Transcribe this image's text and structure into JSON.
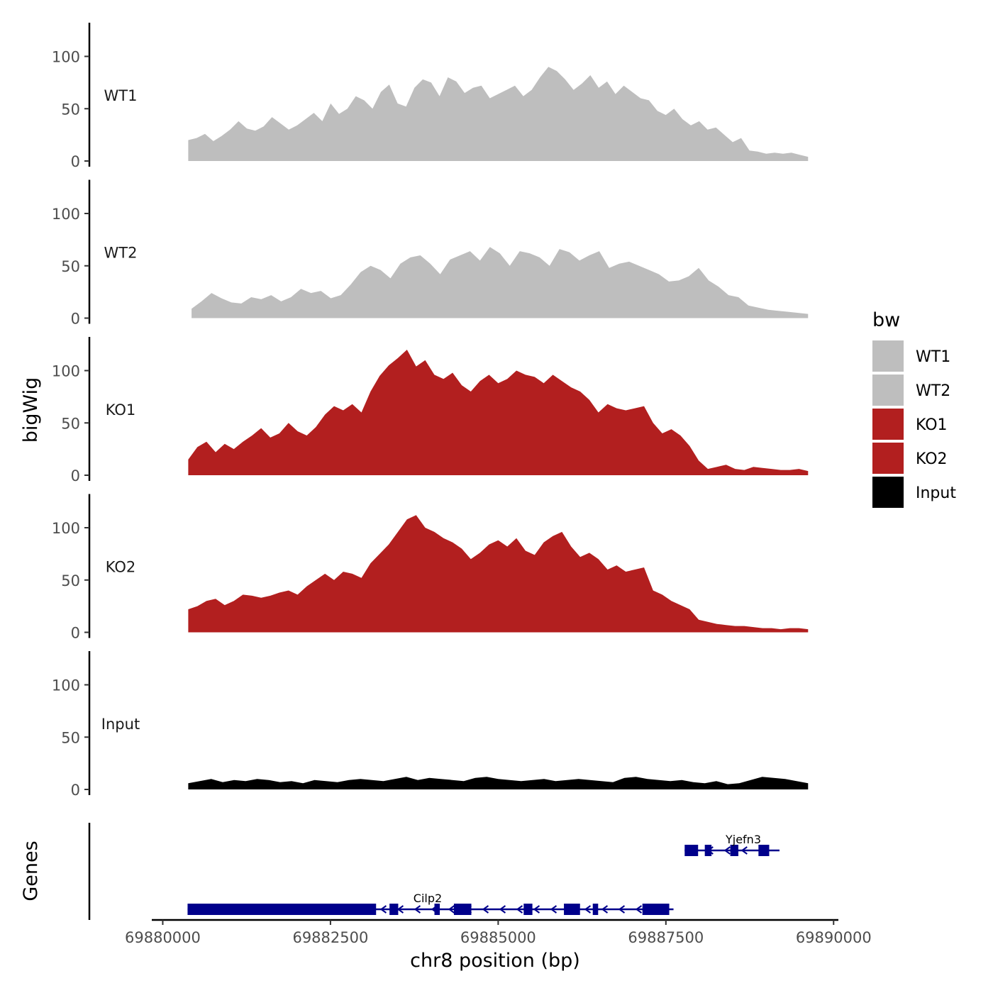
{
  "chart_data": {
    "type": "area",
    "title": "",
    "xlabel": "chr8 position (bp)",
    "ylabel": "bigWig",
    "genes_label": "Genes",
    "xlim": [
      69879900,
      69890050
    ],
    "xticks": [
      69880000,
      69882500,
      69885000,
      69887500,
      69890000
    ],
    "xtick_labels": [
      "69880000",
      "69882500",
      "69885000",
      "69887500",
      "69890000"
    ],
    "ylim": [
      0,
      130
    ],
    "yticks": [
      0,
      50,
      100
    ],
    "ytick_labels": [
      "0",
      "50",
      "100"
    ],
    "legend_title": "bw",
    "legend_position": "right",
    "series": [
      {
        "name": "WT1",
        "color": "#bebebe",
        "x_start": 69880380,
        "x_end": 69889620,
        "step": 220,
        "values": [
          20,
          22,
          26,
          19,
          24,
          30,
          38,
          31,
          29,
          33,
          42,
          36,
          30,
          34,
          40,
          46,
          38,
          55,
          45,
          50,
          62,
          58,
          50,
          66,
          73,
          55,
          52,
          70,
          78,
          75,
          62,
          80,
          76,
          65,
          70,
          72,
          60,
          64,
          68,
          72,
          62,
          68,
          80,
          90,
          86,
          78,
          68,
          74,
          82,
          70,
          76,
          64,
          72,
          66,
          60,
          58,
          48,
          44,
          50,
          40,
          34,
          38,
          30,
          32,
          25,
          18,
          22,
          10,
          9,
          7,
          8,
          7,
          8,
          6,
          4
        ]
      },
      {
        "name": "WT2",
        "color": "#bebebe",
        "x_start": 69880430,
        "x_end": 69889620,
        "step": 220,
        "values": [
          9,
          16,
          24,
          19,
          15,
          14,
          20,
          18,
          22,
          16,
          20,
          28,
          24,
          26,
          19,
          22,
          32,
          44,
          50,
          46,
          38,
          52,
          58,
          60,
          52,
          42,
          56,
          60,
          64,
          55,
          68,
          62,
          50,
          64,
          62,
          58,
          50,
          66,
          63,
          55,
          60,
          64,
          48,
          52,
          54,
          50,
          46,
          42,
          35,
          36,
          40,
          48,
          36,
          30,
          22,
          20,
          12,
          10,
          8,
          7,
          6,
          5,
          4
        ]
      },
      {
        "name": "KO1",
        "color": "#b21f1f",
        "x_start": 69880380,
        "x_end": 69889620,
        "step": 200,
        "values": [
          15,
          27,
          32,
          22,
          30,
          25,
          32,
          38,
          45,
          36,
          40,
          50,
          42,
          38,
          46,
          58,
          66,
          62,
          68,
          60,
          80,
          95,
          105,
          112,
          120,
          104,
          110,
          96,
          92,
          98,
          86,
          80,
          90,
          96,
          88,
          92,
          100,
          96,
          94,
          88,
          96,
          90,
          84,
          80,
          72,
          60,
          68,
          64,
          62,
          64,
          66,
          50,
          40,
          44,
          38,
          28,
          14,
          6,
          8,
          10,
          6,
          5,
          8,
          7,
          6,
          5,
          5,
          6,
          4
        ]
      },
      {
        "name": "KO2",
        "color": "#b21f1f",
        "x_start": 69880380,
        "x_end": 69889620,
        "step": 200,
        "values": [
          22,
          25,
          30,
          32,
          26,
          30,
          36,
          35,
          33,
          35,
          38,
          40,
          36,
          44,
          50,
          56,
          50,
          58,
          56,
          52,
          66,
          75,
          84,
          96,
          108,
          112,
          100,
          96,
          90,
          86,
          80,
          70,
          76,
          84,
          88,
          82,
          90,
          78,
          74,
          86,
          92,
          96,
          82,
          72,
          76,
          70,
          60,
          64,
          58,
          60,
          62,
          40,
          36,
          30,
          26,
          22,
          12,
          10,
          8,
          7,
          6,
          6,
          5,
          4,
          4,
          3,
          4,
          4,
          3
        ]
      },
      {
        "name": "Input",
        "color": "#000000",
        "x_start": 69880380,
        "x_end": 69889620,
        "step": 250,
        "values": [
          6,
          8,
          10,
          7,
          9,
          8,
          10,
          9,
          7,
          8,
          6,
          9,
          8,
          7,
          9,
          10,
          9,
          8,
          10,
          12,
          9,
          11,
          10,
          9,
          8,
          11,
          12,
          10,
          9,
          8,
          9,
          10,
          8,
          9,
          10,
          9,
          8,
          7,
          11,
          12,
          10,
          9,
          8,
          9,
          7,
          6,
          8,
          5,
          6,
          9,
          12,
          11,
          10,
          8,
          6
        ]
      }
    ],
    "genes": [
      {
        "name": "Yjefn3",
        "strand": "-",
        "row": 1,
        "start": 69887780,
        "end": 69889130,
        "exons": [
          [
            69887780,
            69887990
          ],
          [
            69888100,
            69888160
          ],
          [
            69888480,
            69888560
          ],
          [
            69888900,
            69889050
          ],
          [
            69889120,
            69889130
          ]
        ],
        "thick": [
          [
            69887780,
            69887980
          ],
          [
            69888080,
            69888180
          ],
          [
            69888460,
            69888580
          ],
          [
            69888880,
            69889040
          ]
        ]
      },
      {
        "name": "Cilp2",
        "strand": "-",
        "row": 2,
        "start": 69880370,
        "end": 69887550,
        "exons": [
          [
            69880370,
            69883180
          ],
          [
            69883380,
            69883510
          ],
          [
            69884050,
            69884130
          ],
          [
            69884340,
            69884600
          ],
          [
            69885380,
            69885510
          ],
          [
            69885980,
            69886220
          ],
          [
            69886410,
            69886490
          ],
          [
            69887150,
            69887550
          ]
        ],
        "thick": [
          [
            69880370,
            69883180
          ],
          [
            69883380,
            69883510
          ],
          [
            69884050,
            69884130
          ],
          [
            69884340,
            69884600
          ],
          [
            69885380,
            69885510
          ],
          [
            69885980,
            69886220
          ],
          [
            69886410,
            69886490
          ],
          [
            69887150,
            69887550
          ]
        ]
      }
    ]
  }
}
